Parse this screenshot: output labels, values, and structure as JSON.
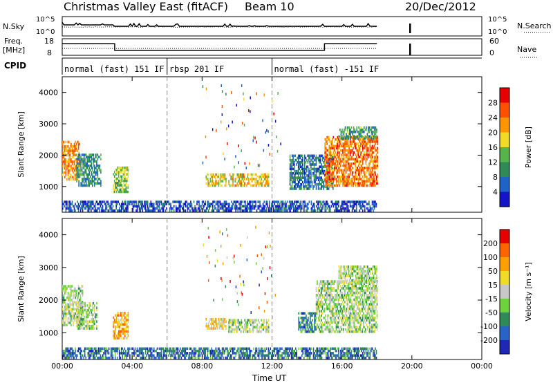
{
  "header": {
    "station": "Christmas Valley East (fitACF)",
    "beam": "Beam 10",
    "date": "20/Dec/2012"
  },
  "params": {
    "nsky_label": "N.Sky",
    "nsky_ticks": [
      "10^5",
      "10^0"
    ],
    "nsearch_label": "N.Search",
    "nsearch_ticks": [
      "10^5",
      "10^0"
    ],
    "freq_label_1": "Freq.",
    "freq_label_2": "[MHz]",
    "freq_ticks": [
      "18",
      "8"
    ],
    "nave_label": "Nave",
    "nave_ticks": [
      "60",
      "0"
    ],
    "cpid_label": "CPID",
    "cpid_segments": [
      {
        "label": "normal (fast) 151 IF",
        "start": 0.0,
        "end": 6.0
      },
      {
        "label": "rbsp 201 IF",
        "start": 6.0,
        "end": 12.0
      },
      {
        "label": "normal (fast) -151 IF",
        "start": 12.0,
        "end": 24.0
      }
    ],
    "freq_profile": [
      [
        0.0,
        15.0
      ],
      [
        3.0,
        15.0
      ],
      [
        3.0,
        11.0
      ],
      [
        15.0,
        11.0
      ],
      [
        15.0,
        15.0
      ],
      [
        18.0,
        15.0
      ]
    ],
    "nave_level": 25
  },
  "chart_data": [
    {
      "type": "heatmap",
      "quantity": "Power",
      "ylabel": "Slant Range [km]",
      "xlabel": "Time UT",
      "x_ticks": [
        "00:00",
        "04:00",
        "08:00",
        "12:00",
        "16:00",
        "20:00",
        "00:00"
      ],
      "y_ticks": [
        "1000",
        "2000",
        "3000",
        "4000"
      ],
      "xlim_hours": [
        0,
        24
      ],
      "ylim_km": [
        180,
        4500
      ],
      "colorbar_label": "Power [dB]",
      "colorbar_ticks": [
        "4",
        "8",
        "12",
        "16",
        "20",
        "24",
        "28"
      ],
      "colorbar_colors": [
        "#1414c8",
        "#1e64c8",
        "#2e8b57",
        "#55b44a",
        "#f0dc28",
        "#ff9600",
        "#ff5000",
        "#e60000"
      ],
      "regions": [
        {
          "t0": 0.0,
          "t1": 1.0,
          "r0": 1200,
          "r1": 2400,
          "level": 0.7
        },
        {
          "t0": 0.8,
          "t1": 2.2,
          "r0": 1000,
          "r1": 2000,
          "level": 0.3
        },
        {
          "t0": 2.9,
          "t1": 3.8,
          "r0": 800,
          "r1": 1600,
          "level": 0.45
        },
        {
          "t0": 8.2,
          "t1": 9.4,
          "r0": 1000,
          "r1": 1400,
          "level": 0.55
        },
        {
          "t0": 9.5,
          "t1": 11.8,
          "r0": 1000,
          "r1": 1400,
          "level": 0.6
        },
        {
          "t0": 13.0,
          "t1": 15.5,
          "r0": 900,
          "r1": 2000,
          "level": 0.25
        },
        {
          "t0": 15.0,
          "t1": 18.0,
          "r0": 1000,
          "r1": 2600,
          "level": 0.75
        },
        {
          "t0": 15.8,
          "t1": 18.0,
          "r0": 2500,
          "r1": 2900,
          "level": 0.35
        },
        {
          "t0": 0.0,
          "t1": 18.0,
          "r0": 200,
          "r1": 500,
          "level": 0.15
        }
      ]
    },
    {
      "type": "heatmap",
      "quantity": "Velocity",
      "ylabel": "Slant Range [km]",
      "xlabel": "Time UT",
      "x_ticks": [
        "00:00",
        "04:00",
        "08:00",
        "12:00",
        "16:00",
        "20:00",
        "00:00"
      ],
      "y_ticks": [
        "1000",
        "2000",
        "3000",
        "4000"
      ],
      "xlim_hours": [
        0,
        24
      ],
      "ylim_km": [
        180,
        4500
      ],
      "colorbar_label": "Velocity [m s⁻¹]",
      "colorbar_ticks": [
        "200",
        "100",
        "50",
        "15",
        "-15",
        "-50",
        "-100",
        "-200"
      ],
      "colorbar_colors": [
        "#1e28b4",
        "#2864c8",
        "#2e8b57",
        "#6ed23c",
        "#c8c8c8",
        "#f0dc28",
        "#ffa000",
        "#ff6400",
        "#e60000"
      ],
      "regions": [
        {
          "t0": 0.0,
          "t1": 1.2,
          "r0": 1200,
          "r1": 2400,
          "level": 0.45
        },
        {
          "t0": 0.8,
          "t1": 2.0,
          "r0": 1100,
          "r1": 1900,
          "level": 0.45
        },
        {
          "t0": 2.9,
          "t1": 3.8,
          "r0": 800,
          "r1": 1600,
          "level": 0.7
        },
        {
          "t0": 8.2,
          "t1": 9.4,
          "r0": 1100,
          "r1": 1400,
          "level": 0.6
        },
        {
          "t0": 9.5,
          "t1": 11.8,
          "r0": 1000,
          "r1": 1400,
          "level": 0.45
        },
        {
          "t0": 13.5,
          "t1": 14.5,
          "r0": 1000,
          "r1": 1600,
          "level": 0.25
        },
        {
          "t0": 14.5,
          "t1": 18.0,
          "r0": 1000,
          "r1": 2600,
          "level": 0.45
        },
        {
          "t0": 15.8,
          "t1": 18.0,
          "r0": 2500,
          "r1": 3000,
          "level": 0.45
        },
        {
          "t0": 0.0,
          "t1": 18.0,
          "r0": 200,
          "r1": 500,
          "level": 0.2
        }
      ]
    }
  ]
}
